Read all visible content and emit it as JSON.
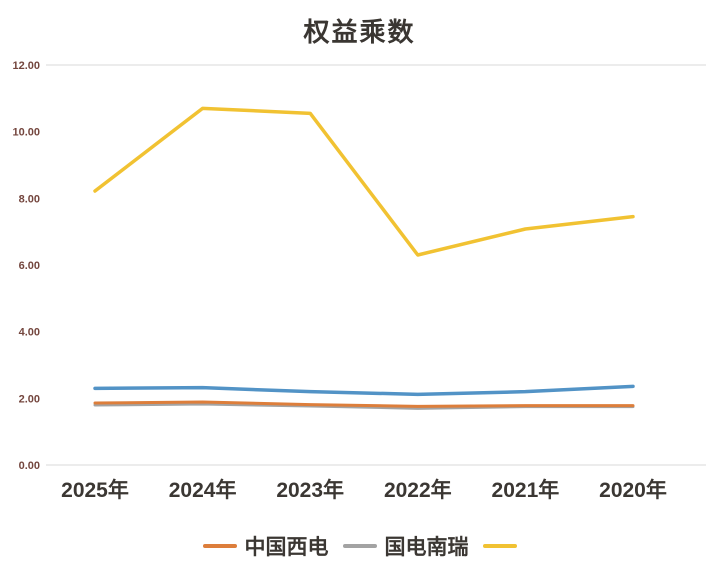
{
  "chart_data": {
    "type": "line",
    "title": "权益乘数",
    "categories": [
      "2025年",
      "2024年",
      "2023年",
      "2022年",
      "2021年",
      "2020年"
    ],
    "series": [
      {
        "name": "国电南瑞",
        "color": "#A3A3A3",
        "width": 3,
        "values": [
          1.8,
          1.83,
          1.77,
          1.7,
          1.75,
          1.75
        ]
      },
      {
        "name": "中国西电",
        "color": "#DD7E3B",
        "width": 3,
        "values": [
          1.86,
          1.89,
          1.81,
          1.76,
          1.78,
          1.78
        ]
      },
      {
        "name": "",
        "color": "#5293C6",
        "width": 3.5,
        "values": [
          2.3,
          2.32,
          2.2,
          2.12,
          2.2,
          2.36
        ]
      },
      {
        "name": "",
        "color": "#F1C232",
        "width": 3.5,
        "values": [
          8.22,
          10.7,
          10.55,
          6.3,
          7.08,
          7.45
        ]
      }
    ],
    "ylim": [
      0,
      12
    ],
    "yticks": [
      {
        "v": 12,
        "label": "12.00"
      },
      {
        "v": 10,
        "label": "10.00"
      },
      {
        "v": 8,
        "label": "8.00"
      },
      {
        "v": 6,
        "label": "6.00"
      },
      {
        "v": 4,
        "label": "4.00"
      },
      {
        "v": 2,
        "label": "2.00"
      },
      {
        "v": 0,
        "label": "0.00"
      }
    ],
    "grid_levels": [
      12,
      0
    ],
    "legend_position": "bottom"
  },
  "legend": {
    "items": [
      {
        "label": "中国西电",
        "color": "#DD7E3B"
      },
      {
        "label": "国电南瑞",
        "color": "#A3A3A3"
      },
      {
        "label": "",
        "color": "#F1C232"
      }
    ]
  }
}
